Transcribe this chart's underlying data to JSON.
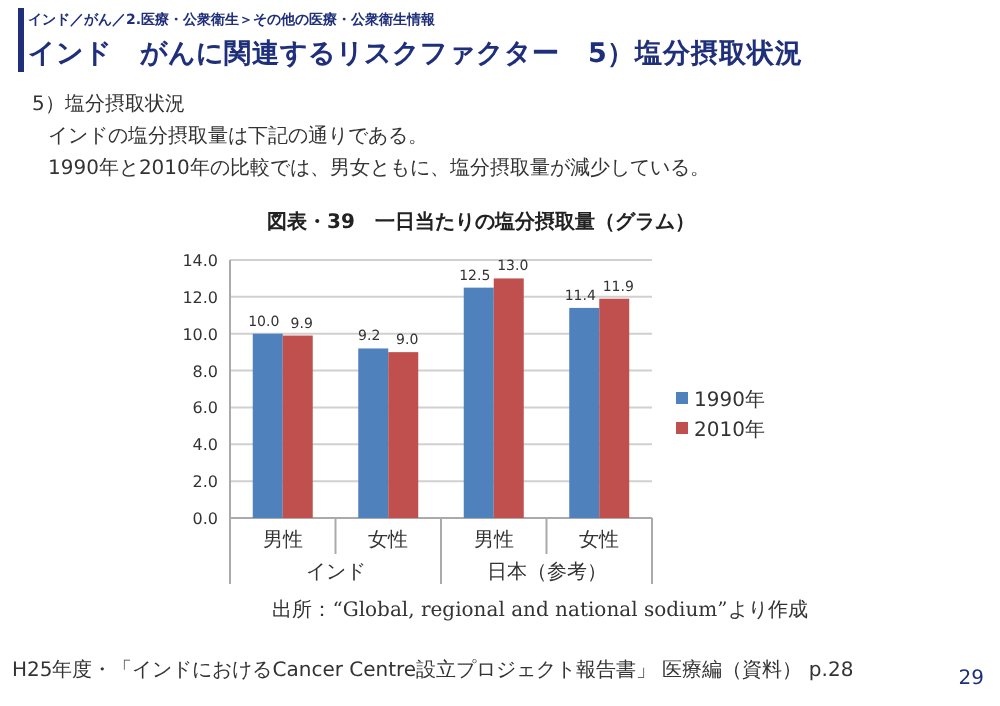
{
  "chart_data": {
    "type": "bar",
    "title": "図表・39　一日当たりの塩分摂取量（グラム）",
    "categories": [
      "男性",
      "女性",
      "男性",
      "女性"
    ],
    "series": [
      {
        "name": "1990年",
        "color": "#4f81bd",
        "values": [
          10.0,
          9.2,
          12.5,
          11.4
        ],
        "value_labels": [
          "10.0",
          "9.2",
          "12.5",
          "11.4"
        ]
      },
      {
        "name": "2010年",
        "color": "#c0504d",
        "values": [
          9.9,
          9.0,
          13.0,
          11.9
        ],
        "value_labels": [
          "9.9",
          "9.0",
          "13.0",
          "11.9"
        ]
      }
    ],
    "ylim": [
      0,
      14
    ],
    "yticks": [
      {
        "value": 0,
        "label": "0.0"
      },
      {
        "value": 2,
        "label": "2.0"
      },
      {
        "value": 4,
        "label": "4.0"
      },
      {
        "value": 6,
        "label": "6.0"
      },
      {
        "value": 8,
        "label": "8.0"
      },
      {
        "value": 10,
        "label": "10.0"
      },
      {
        "value": 12,
        "label": "12.0"
      },
      {
        "value": 14,
        "label": "14.0"
      }
    ],
    "grid": "y",
    "legend": "right",
    "annotations": [
      "インド／がん／2.医療・公衆衛生＞その他の医療・公衆衛生情報",
      "インド　がんに関連するリスクファクター　5）塩分摂取状況",
      "5）塩分摂取状況",
      "インドの塩分摂取量は下記の通りである。",
      "1990年と2010年の比較では、男女ともに、塩分摂取量が減少している。",
      "インド",
      "日本（参考）",
      "出所：“Global, regional and national sodium”より作成",
      "H25年度・「インドにおけるCancer Centre設立プロジェクト報告書」 医療編（資料） p.28",
      "29"
    ]
  }
}
